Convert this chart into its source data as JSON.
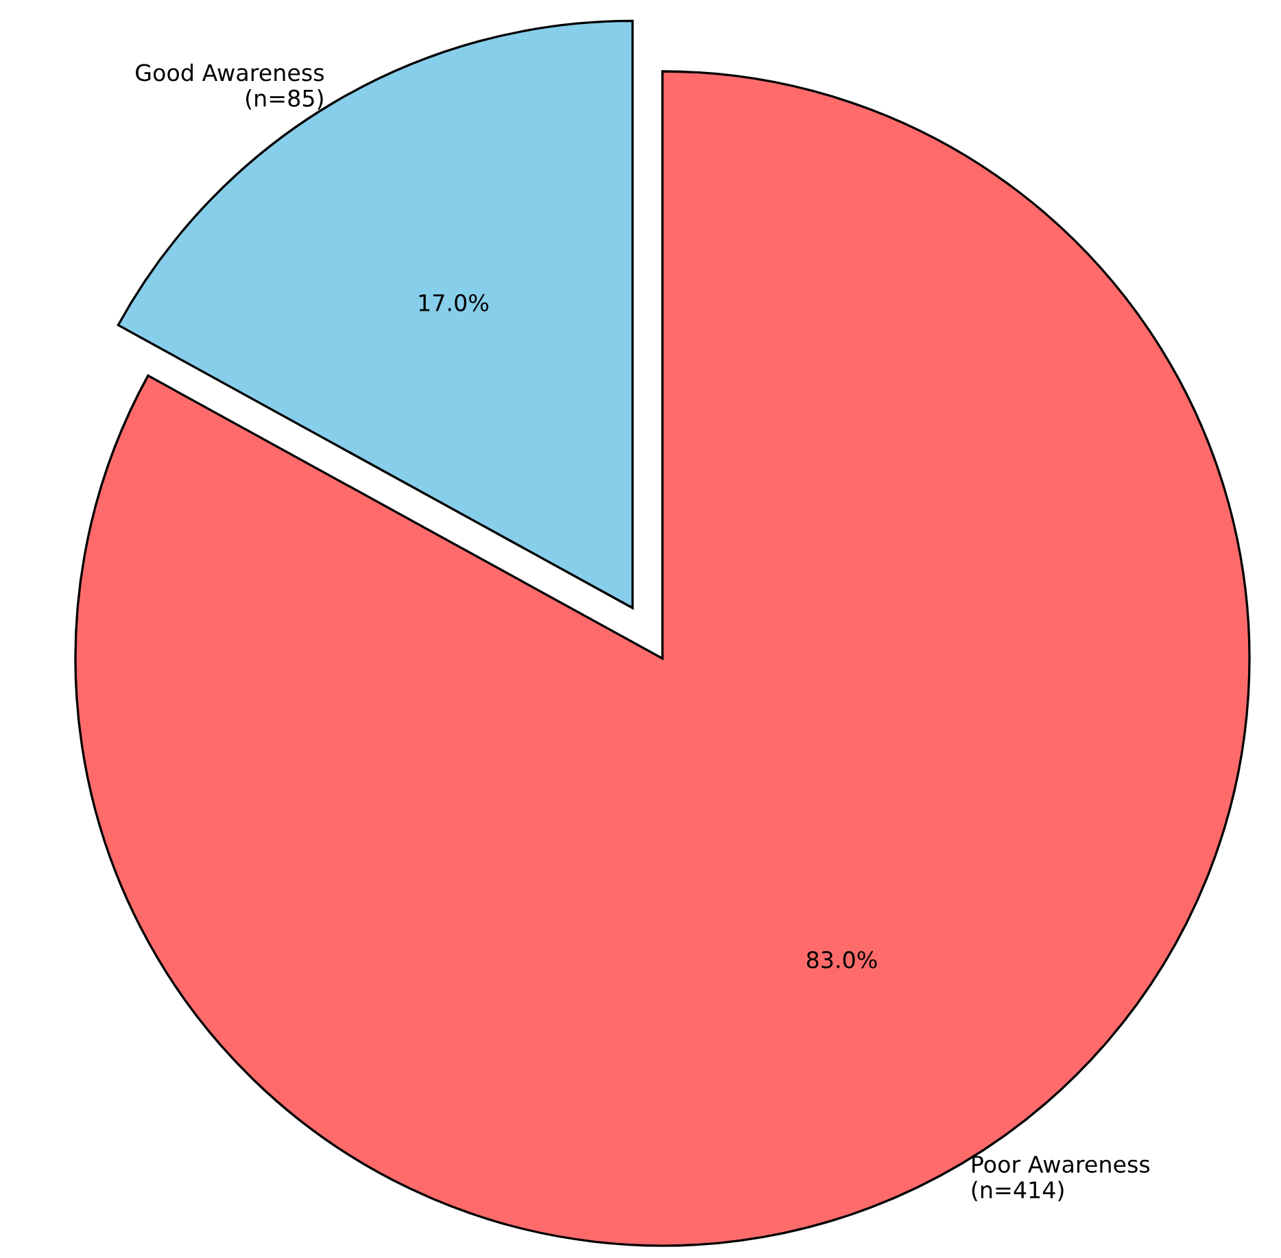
{
  "chart_data": {
    "type": "pie",
    "categories": [
      "Good Awareness\n(n=85)",
      "Poor Awareness\n(n=414)"
    ],
    "values": [
      17.0,
      83.0
    ],
    "colors": [
      "#87ceeb",
      "#ff6b6b"
    ],
    "value_labels": [
      "17.0%",
      "83.0%"
    ]
  }
}
